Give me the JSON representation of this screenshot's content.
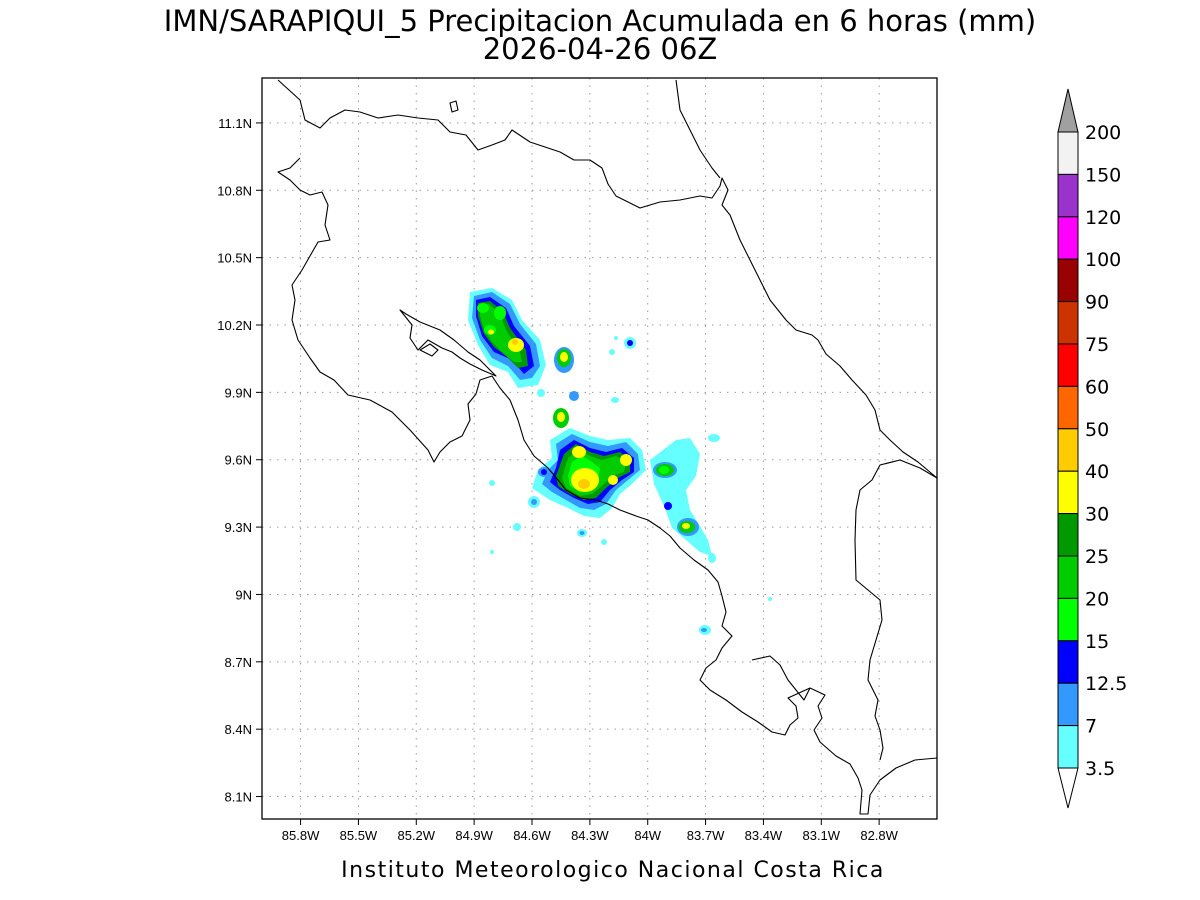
{
  "title": "IMN/SARAPIQUI_5 Precipitacion Acumulada en 6 horas (mm)",
  "subtitle": "2026-04-26 06Z",
  "footer": "Instituto Meteorologico Nacional Costa Rica",
  "map": {
    "lon_range": [
      -86.0,
      -82.5
    ],
    "lat_range": [
      8.0,
      11.3
    ],
    "lon_ticks": [
      "85.8W",
      "85.5W",
      "85.2W",
      "84.9W",
      "84.6W",
      "84.3W",
      "84W",
      "83.7W",
      "83.4W",
      "83.1W",
      "82.8W"
    ],
    "lat_ticks": [
      "11.1N",
      "10.8N",
      "10.5N",
      "10.2N",
      "9.9N",
      "9.6N",
      "9.3N",
      "9N",
      "8.7N",
      "8.4N",
      "8.1N"
    ],
    "grid": true
  },
  "colorbar": {
    "labels": [
      "200",
      "150",
      "120",
      "100",
      "90",
      "75",
      "60",
      "50",
      "40",
      "30",
      "25",
      "20",
      "15",
      "12.5",
      "7",
      "3.5"
    ],
    "colors": {
      "over_200": "#a0a0a0",
      "c150_200": "#f2f2f2",
      "c120_150": "#9933cc",
      "c100_120": "#ff00ff",
      "c90_100": "#990000",
      "c75_90": "#cc3300",
      "c60_75": "#ff0000",
      "c50_60": "#ff6600",
      "c40_50": "#ffcc00",
      "c30_40": "#ffff00",
      "c25_30": "#009900",
      "c20_25": "#00cc00",
      "c15_20": "#00ff00",
      "c12_15": "#0000ff",
      "c7_12": "#3399ff",
      "c3_7": "#66ffff",
      "under_3": "#ffffff"
    }
  }
}
